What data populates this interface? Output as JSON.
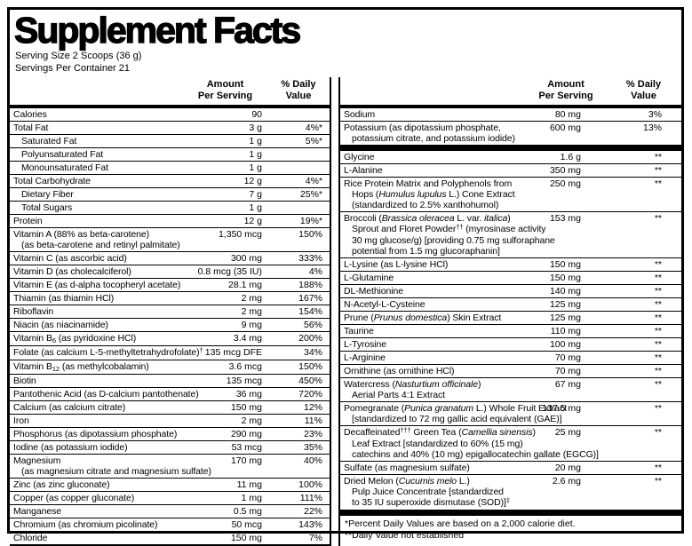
{
  "title": "Supplement Facts",
  "serving": {
    "size": "Serving Size 2 Scoops (36 g)",
    "per_container": "Servings Per Container 21"
  },
  "column_header": {
    "amount": "Amount\nPer Serving",
    "daily_value": "% Daily\nValue"
  },
  "colors": {
    "ink": "#000000",
    "paper": "#ffffff"
  },
  "left_rows": [
    {
      "lines": [
        "Calories"
      ],
      "amount": "90",
      "dv": ""
    },
    {
      "lines": [
        "Total Fat"
      ],
      "amount": "3 g",
      "dv": "4%*"
    },
    {
      "lines": [
        "Saturated Fat"
      ],
      "amount": "1 g",
      "dv": "5%*",
      "indent": 1
    },
    {
      "lines": [
        "Polyunsaturated Fat"
      ],
      "amount": "1 g",
      "dv": "",
      "indent": 1
    },
    {
      "lines": [
        "Monounsaturated Fat"
      ],
      "amount": "1 g",
      "dv": "",
      "indent": 1
    },
    {
      "lines": [
        "Total Carbohydrate"
      ],
      "amount": "12 g",
      "dv": "4%*"
    },
    {
      "lines": [
        "Dietary Fiber"
      ],
      "amount": "7 g",
      "dv": "25%*",
      "indent": 1
    },
    {
      "lines": [
        "Total Sugars"
      ],
      "amount": "1 g",
      "dv": "",
      "indent": 1
    },
    {
      "lines": [
        "Protein"
      ],
      "amount": "12 g",
      "dv": "19%*"
    },
    {
      "lines": [
        "Vitamin A (88% as beta-carotene)",
        "(as beta-carotene and retinyl palmitate)"
      ],
      "amount": "1,350 mcg",
      "dv": "150%"
    },
    {
      "lines": [
        "Vitamin C (as ascorbic acid)"
      ],
      "amount": "300 mg",
      "dv": "333%"
    },
    {
      "lines": [
        "Vitamin D (as cholecalciferol)"
      ],
      "amount": "0.8 mcg (35 IU)",
      "dv": "4%"
    },
    {
      "lines": [
        "Vitamin E (as d-alpha tocopheryl acetate)"
      ],
      "amount": "28.1 mg",
      "dv": "188%"
    },
    {
      "lines": [
        "Thiamin (as thiamin HCl)"
      ],
      "amount": "2 mg",
      "dv": "167%"
    },
    {
      "lines": [
        "Riboflavin"
      ],
      "amount": "2 mg",
      "dv": "154%"
    },
    {
      "lines": [
        "Niacin (as niacinamide)"
      ],
      "amount": "9 mg",
      "dv": "56%"
    },
    {
      "lines": [
        "Vitamin B~6~ (as pyridoxine HCl)"
      ],
      "amount": "3.4 mg",
      "dv": "200%"
    },
    {
      "lines": [
        "Folate (as calcium L-5-methyltetrahydrofolate)^†^"
      ],
      "amount": "135 mcg DFE",
      "dv": "34%"
    },
    {
      "lines": [
        "Vitamin B~12~ (as methylcobalamin)"
      ],
      "amount": "3.6 mcg",
      "dv": "150%"
    },
    {
      "lines": [
        "Biotin"
      ],
      "amount": "135 mcg",
      "dv": "450%"
    },
    {
      "lines": [
        "Pantothenic Acid (as D-calcium pantothenate)"
      ],
      "amount": "36 mg",
      "dv": "720%"
    },
    {
      "lines": [
        "Calcium (as calcium citrate)"
      ],
      "amount": "150 mg",
      "dv": "12%"
    },
    {
      "lines": [
        "Iron"
      ],
      "amount": "2 mg",
      "dv": "11%"
    },
    {
      "lines": [
        "Phosphorus (as dipotassium phosphate)"
      ],
      "amount": "290 mg",
      "dv": "23%"
    },
    {
      "lines": [
        "Iodine (as potassium iodide)"
      ],
      "amount": "53 mcg",
      "dv": "35%"
    },
    {
      "lines": [
        "Magnesium",
        "(as magnesium citrate and magnesium sulfate)"
      ],
      "amount": "170 mg",
      "dv": "40%"
    },
    {
      "lines": [
        "Zinc (as zinc gluconate)"
      ],
      "amount": "11 mg",
      "dv": "100%"
    },
    {
      "lines": [
        "Copper (as copper gluconate)"
      ],
      "amount": "1 mg",
      "dv": "111%"
    },
    {
      "lines": [
        "Manganese"
      ],
      "amount": "0.5 mg",
      "dv": "22%"
    },
    {
      "lines": [
        "Chromium (as chromium picolinate)"
      ],
      "amount": "50 mcg",
      "dv": "143%"
    },
    {
      "lines": [
        "Chloride"
      ],
      "amount": "150 mg",
      "dv": "7%"
    }
  ],
  "right_rows": [
    {
      "lines": [
        "Sodium"
      ],
      "amount": "80 mg",
      "dv": "3%"
    },
    {
      "lines": [
        "Potassium (as dipotassium phosphate,",
        "potassium citrate, and potassium iodide)"
      ],
      "amount": "600 mg",
      "dv": "13%"
    },
    {
      "type": "bar"
    },
    {
      "lines": [
        "Glycine"
      ],
      "amount": "1.6 g",
      "dv": "**"
    },
    {
      "lines": [
        "L-Alanine"
      ],
      "amount": "350 mg",
      "dv": "**"
    },
    {
      "lines": [
        "Rice Protein Matrix and Polyphenols from",
        "Hops (*Humulus lupulus* L.) Cone Extract",
        "(standardized to 2.5% xanthohumol)"
      ],
      "amount": "250 mg",
      "dv": "**"
    },
    {
      "lines": [
        "Broccoli (*Brassica oleracea* L. var. *italica*)",
        "Sprout and Floret Powder^††^ (myrosinase activity",
        "30 mg glucose/g) [providing 0.75 mg sulforaphane",
        "potential from 1.5 mg glucoraphanin]"
      ],
      "amount": "153 mg",
      "dv": "**"
    },
    {
      "lines": [
        "L-Lysine (as L-lysine HCl)"
      ],
      "amount": "150 mg",
      "dv": "**"
    },
    {
      "lines": [
        "L-Glutamine"
      ],
      "amount": "150 mg",
      "dv": "**"
    },
    {
      "lines": [
        "DL-Methionine"
      ],
      "amount": "140 mg",
      "dv": "**"
    },
    {
      "lines": [
        "N-Acetyl-L-Cysteine"
      ],
      "amount": "125 mg",
      "dv": "**"
    },
    {
      "lines": [
        "Prune (*Prunus domestica*) Skin Extract"
      ],
      "amount": "125 mg",
      "dv": "**"
    },
    {
      "lines": [
        "Taurine"
      ],
      "amount": "110 mg",
      "dv": "**"
    },
    {
      "lines": [
        "L-Tyrosine"
      ],
      "amount": "100 mg",
      "dv": "**"
    },
    {
      "lines": [
        "L-Arginine"
      ],
      "amount": "70 mg",
      "dv": "**"
    },
    {
      "lines": [
        "Ornithine (as ornithine HCl)"
      ],
      "amount": "70 mg",
      "dv": "**"
    },
    {
      "lines": [
        "Watercress (*Nasturtium officinale*)",
        "Aerial Parts 4:1 Extract"
      ],
      "amount": "67 mg",
      "dv": "**"
    },
    {
      "lines": [
        "Pomegranate (*Punica granatum* L.) Whole Fruit Extract",
        "[standardized to 72 mg gallic acid equivalent (GAE)]"
      ],
      "amount": "137.5 mg",
      "dv": "**"
    },
    {
      "lines": [
        "Decaffeinated^†††^ Green Tea (*Camellia sinensis*)",
        "Leaf Extract [standardized to 60% (15 mg)",
        "catechins and 40% (10 mg) epigallocatechin gallate (EGCG)]"
      ],
      "amount": "25 mg",
      "dv": "**"
    },
    {
      "lines": [
        "Sulfate (as magnesium sulfate)"
      ],
      "amount": "20 mg",
      "dv": "**"
    },
    {
      "lines": [
        "Dried Melon (*Cucumis melo* L.)",
        "Pulp Juice Concentrate [standardized",
        "to 35 IU superoxide dismutase (SOD)]^‡^"
      ],
      "amount": "2.6 mg",
      "dv": "**"
    },
    {
      "type": "bar"
    }
  ],
  "footnotes": [
    "*Percent Daily Values are based on a 2,000 calorie diet.",
    "**Daily Value not established"
  ]
}
